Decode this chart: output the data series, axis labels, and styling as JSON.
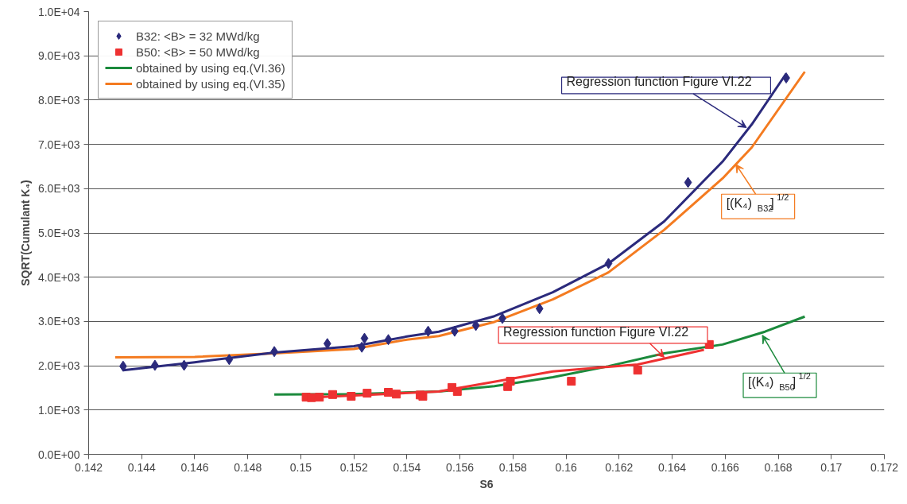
{
  "chart_data": {
    "type": "scatter",
    "xlabel": "S6",
    "ylabel": "SQRT(Cumulant K₄)",
    "xlim": [
      0.142,
      0.172
    ],
    "xticks": [
      0.142,
      0.144,
      0.146,
      0.148,
      0.15,
      0.152,
      0.154,
      0.156,
      0.158,
      0.16,
      0.162,
      0.164,
      0.166,
      0.168,
      0.17,
      0.172
    ],
    "ylim": [
      0,
      10000
    ],
    "yticks": [
      {
        "value": 0,
        "label": "0.0E+00"
      },
      {
        "value": 1000,
        "label": "1.0E+03"
      },
      {
        "value": 2000,
        "label": "2.0E+03"
      },
      {
        "value": 3000,
        "label": "3.0E+03"
      },
      {
        "value": 4000,
        "label": "4.0E+03"
      },
      {
        "value": 5000,
        "label": "5.0E+03"
      },
      {
        "value": 6000,
        "label": "6.0E+03"
      },
      {
        "value": 7000,
        "label": "7.0E+03"
      },
      {
        "value": 8000,
        "label": "8.0E+03"
      },
      {
        "value": 9000,
        "label": "9.0E+03"
      },
      {
        "value": 10000,
        "label": "1.0E+04"
      }
    ],
    "grid": "y",
    "legend": "top left",
    "series": [
      {
        "name": "B32: <B> = 32 MWd/kg",
        "marker": "diamond",
        "color": "#2b2a7c",
        "x": [
          0.1433,
          0.1445,
          0.1456,
          0.1473,
          0.149,
          0.151,
          0.1523,
          0.1524,
          0.1533,
          0.1548,
          0.1558,
          0.1566,
          0.1576,
          0.159,
          0.1616,
          0.1646,
          0.1683
        ],
        "values": [
          1990,
          2010,
          2010,
          2140,
          2320,
          2500,
          2420,
          2620,
          2590,
          2780,
          2780,
          2910,
          3070,
          3290,
          4310,
          6140,
          8500
        ]
      },
      {
        "name": "B50: <B> = 50 MWd/kg",
        "marker": "square",
        "color": "#ee3131",
        "x": [
          0.1502,
          0.1504,
          0.1507,
          0.1512,
          0.1519,
          0.1525,
          0.1533,
          0.1536,
          0.1545,
          0.1546,
          0.1557,
          0.1559,
          0.1578,
          0.1579,
          0.1602,
          0.1627,
          0.1654
        ],
        "values": [
          1290,
          1280,
          1290,
          1350,
          1310,
          1380,
          1400,
          1360,
          1340,
          1310,
          1510,
          1420,
          1530,
          1650,
          1650,
          1900,
          2480
        ]
      },
      {
        "name": "obtained by using eq.(VI.36)",
        "type": "line",
        "color": "#1b8a3c",
        "x": [
          0.149,
          0.152,
          0.1552,
          0.1573,
          0.1595,
          0.1616,
          0.1637,
          0.1659,
          0.1675,
          0.169
        ],
        "values": [
          1350,
          1360,
          1420,
          1540,
          1740,
          1990,
          2280,
          2480,
          2770,
          3110
        ]
      },
      {
        "name": "obtained by using eq.(VI.35)",
        "type": "line",
        "color": "#f47b20",
        "x": [
          0.143,
          0.146,
          0.149,
          0.152,
          0.154,
          0.1552,
          0.1573,
          0.1595,
          0.1616,
          0.1637,
          0.1659,
          0.167,
          0.169
        ],
        "values": [
          2190,
          2200,
          2280,
          2380,
          2590,
          2670,
          2990,
          3500,
          4110,
          5070,
          6230,
          6930,
          8640
        ]
      },
      {
        "type": "line",
        "color": "#2b2a7c",
        "x": [
          0.1433,
          0.146,
          0.149,
          0.152,
          0.154,
          0.1552,
          0.1573,
          0.1595,
          0.1616,
          0.1637,
          0.1659,
          0.167,
          0.1683
        ],
        "values": [
          1900,
          2080,
          2300,
          2440,
          2660,
          2770,
          3120,
          3660,
          4310,
          5260,
          6610,
          7450,
          8600
        ]
      },
      {
        "type": "line",
        "color": "#ee3131",
        "x": [
          0.1502,
          0.152,
          0.1552,
          0.1595,
          0.1627,
          0.1652
        ],
        "values": [
          1280,
          1330,
          1420,
          1870,
          2030,
          2360
        ]
      }
    ],
    "annotations": [
      {
        "text": "Regression function Figure VI.22",
        "x": 0.1668,
        "y": 7380
      },
      {
        "text": "[(K₄)$_{B32}$]$^{1/2}$",
        "x": 0.1664,
        "y": 6550
      },
      {
        "text": "Regression function Figure VI.22",
        "x": 0.1637,
        "y": 2190
      },
      {
        "text": "[(K₄)$_{B50}$]$^{1/2}$",
        "x": 0.1674,
        "y": 2690
      }
    ]
  }
}
